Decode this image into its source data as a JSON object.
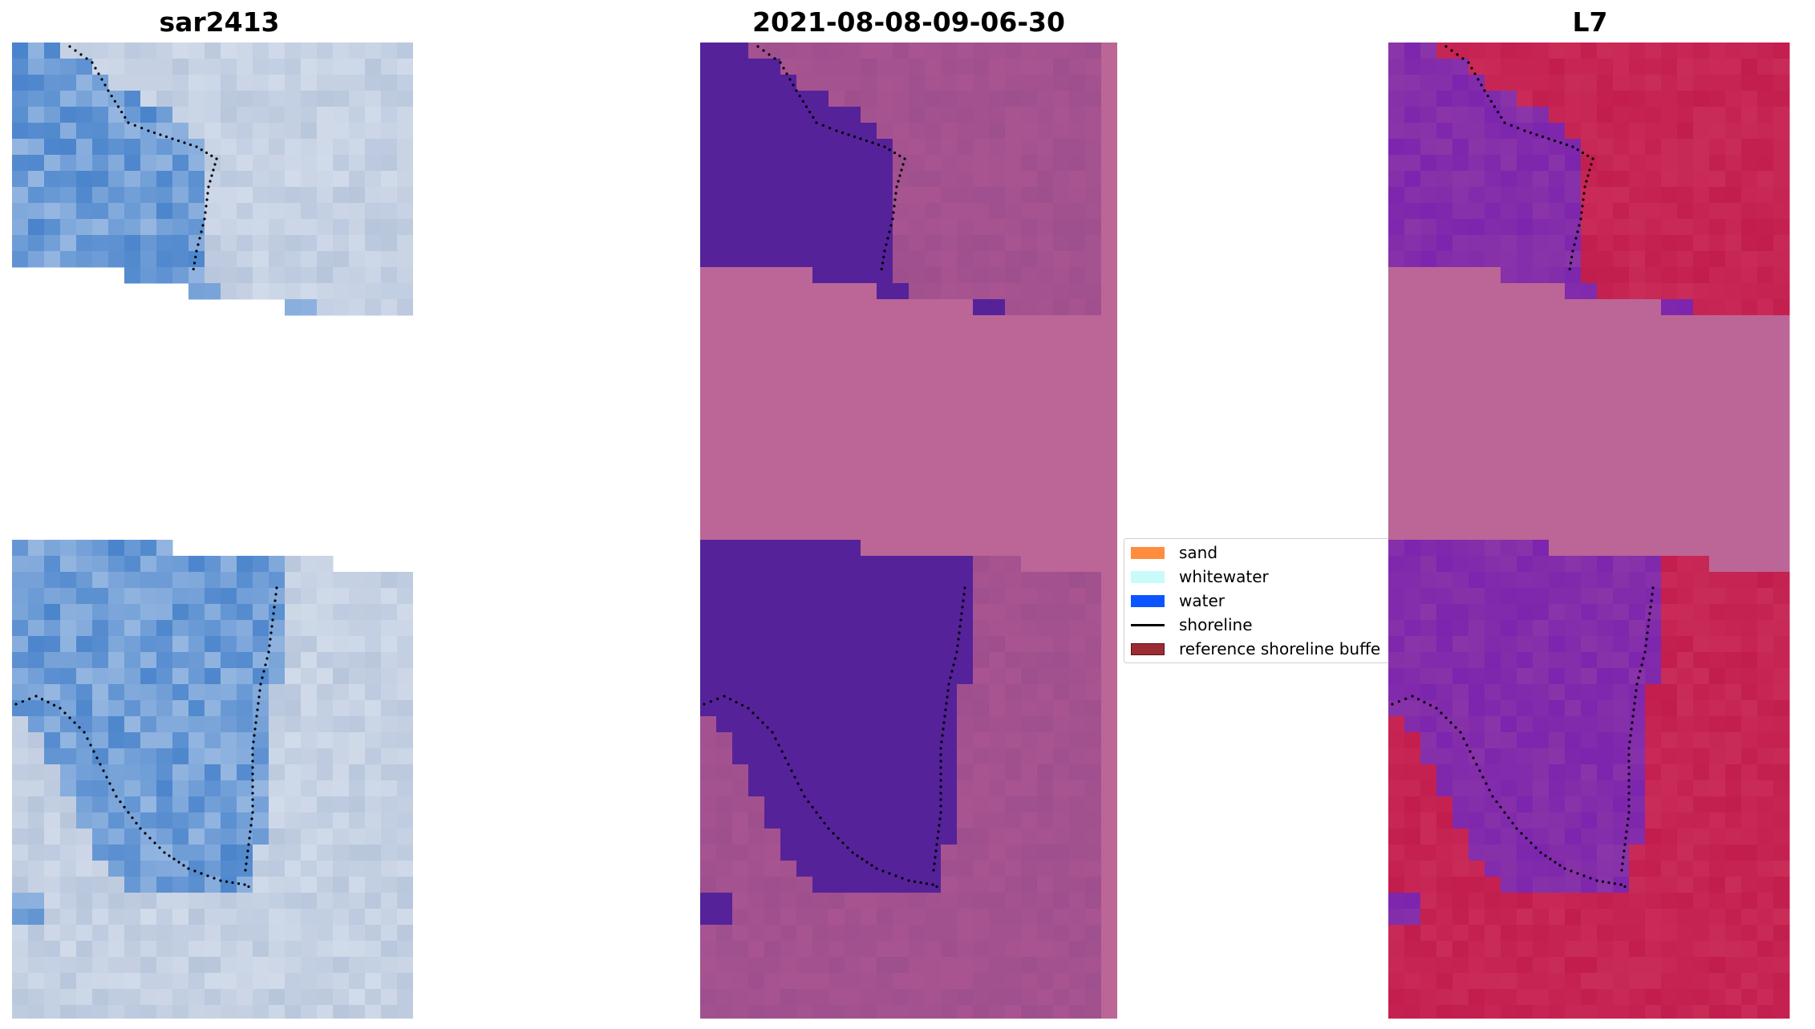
{
  "panels": [
    {
      "title": "sar2413"
    },
    {
      "title": "2021-08-08-09-06-30"
    },
    {
      "title": "L7"
    }
  ],
  "legend": {
    "items": [
      {
        "label": "sand",
        "color": "#ff8c3f",
        "kind": "patch"
      },
      {
        "label": "whitewater",
        "color": "#c8fbfa",
        "kind": "patch"
      },
      {
        "label": "water",
        "color": "#0a55ff",
        "kind": "patch"
      },
      {
        "label": "shoreline",
        "color": "#000000",
        "kind": "line"
      },
      {
        "label": "reference shoreline buffe",
        "color": "#9b2c33",
        "kind": "patch"
      }
    ]
  },
  "colors": {
    "rgb_water": "#4a84cc",
    "rgb_land": "#b8c6dc",
    "mndwi_water": "#55229a",
    "mndwi_land": "#9e4f8d",
    "mndwi_nodata": "#bb6696",
    "l7_water": "#8a35a8",
    "l7_land": "#c21d4d",
    "l7_nodata": "#bb6696",
    "shoreline": "#000000"
  }
}
